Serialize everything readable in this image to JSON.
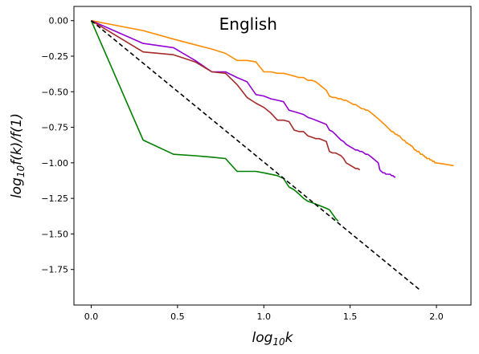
{
  "chart_data": {
    "type": "line",
    "title": "English",
    "xlabel": "log10k",
    "ylabel": "log10f(k)/f(1)",
    "xlim": [
      -0.1,
      2.2
    ],
    "ylim": [
      -2.0,
      0.1
    ],
    "grid": false,
    "x_ticks": [
      0.0,
      0.5,
      1.0,
      1.5,
      2.0
    ],
    "x_tick_labels": [
      "0.0",
      "0.5",
      "1.0",
      "1.5",
      "2.0"
    ],
    "y_ticks": [
      0.0,
      -0.25,
      -0.5,
      -0.75,
      -1.0,
      -1.25,
      -1.5,
      -1.75
    ],
    "y_tick_labels": [
      "0.00",
      "−0.25",
      "−0.50",
      "−0.75",
      "−1.00",
      "−1.25",
      "−1.50",
      "−1.75"
    ],
    "series": [
      {
        "color": "#ff8c00",
        "style": "solid",
        "points": [
          [
            0.0,
            0.0
          ],
          [
            0.301,
            -0.07
          ],
          [
            0.477,
            -0.13
          ],
          [
            0.602,
            -0.17
          ],
          [
            0.699,
            -0.2
          ],
          [
            0.778,
            -0.23
          ],
          [
            0.845,
            -0.28
          ],
          [
            0.903,
            -0.28
          ],
          [
            0.954,
            -0.29
          ],
          [
            1.0,
            -0.36
          ],
          [
            1.041,
            -0.36
          ],
          [
            1.079,
            -0.37
          ],
          [
            1.114,
            -0.37
          ],
          [
            1.146,
            -0.38
          ],
          [
            1.176,
            -0.39
          ],
          [
            1.204,
            -0.4
          ],
          [
            1.23,
            -0.4
          ],
          [
            1.255,
            -0.42
          ],
          [
            1.279,
            -0.42
          ],
          [
            1.301,
            -0.43
          ],
          [
            1.322,
            -0.45
          ],
          [
            1.342,
            -0.47
          ],
          [
            1.362,
            -0.49
          ],
          [
            1.38,
            -0.53
          ],
          [
            1.398,
            -0.54
          ],
          [
            1.415,
            -0.54
          ],
          [
            1.431,
            -0.55
          ],
          [
            1.447,
            -0.55
          ],
          [
            1.462,
            -0.56
          ],
          [
            1.477,
            -0.56
          ],
          [
            1.491,
            -0.57
          ],
          [
            1.505,
            -0.58
          ],
          [
            1.519,
            -0.59
          ],
          [
            1.531,
            -0.59
          ],
          [
            1.544,
            -0.6
          ],
          [
            1.556,
            -0.61
          ],
          [
            1.568,
            -0.62
          ],
          [
            1.58,
            -0.62
          ],
          [
            1.591,
            -0.63
          ],
          [
            1.602,
            -0.63
          ],
          [
            1.613,
            -0.64
          ],
          [
            1.623,
            -0.65
          ],
          [
            1.633,
            -0.66
          ],
          [
            1.643,
            -0.67
          ],
          [
            1.653,
            -0.68
          ],
          [
            1.663,
            -0.69
          ],
          [
            1.672,
            -0.7
          ],
          [
            1.681,
            -0.71
          ],
          [
            1.69,
            -0.72
          ],
          [
            1.699,
            -0.73
          ],
          [
            1.708,
            -0.74
          ],
          [
            1.716,
            -0.75
          ],
          [
            1.724,
            -0.76
          ],
          [
            1.732,
            -0.77
          ],
          [
            1.74,
            -0.78
          ],
          [
            1.748,
            -0.78
          ],
          [
            1.756,
            -0.79
          ],
          [
            1.763,
            -0.8
          ],
          [
            1.771,
            -0.8
          ],
          [
            1.778,
            -0.81
          ],
          [
            1.785,
            -0.81
          ],
          [
            1.792,
            -0.82
          ],
          [
            1.799,
            -0.83
          ],
          [
            1.806,
            -0.84
          ],
          [
            1.813,
            -0.84
          ],
          [
            1.82,
            -0.85
          ],
          [
            1.826,
            -0.86
          ],
          [
            1.833,
            -0.86
          ],
          [
            1.839,
            -0.87
          ],
          [
            1.845,
            -0.87
          ],
          [
            1.851,
            -0.88
          ],
          [
            1.857,
            -0.88
          ],
          [
            1.863,
            -0.89
          ],
          [
            1.869,
            -0.9
          ],
          [
            1.875,
            -0.91
          ],
          [
            1.881,
            -0.91
          ],
          [
            1.886,
            -0.92
          ],
          [
            1.892,
            -0.92
          ],
          [
            1.898,
            -0.92
          ],
          [
            1.903,
            -0.93
          ],
          [
            1.908,
            -0.94
          ],
          [
            1.914,
            -0.94
          ],
          [
            1.919,
            -0.94
          ],
          [
            1.924,
            -0.95
          ],
          [
            1.929,
            -0.95
          ],
          [
            1.934,
            -0.96
          ],
          [
            1.94,
            -0.96
          ],
          [
            1.944,
            -0.97
          ],
          [
            1.949,
            -0.97
          ],
          [
            1.954,
            -0.97
          ],
          [
            1.959,
            -0.97
          ],
          [
            1.964,
            -0.98
          ],
          [
            1.968,
            -0.98
          ],
          [
            1.973,
            -0.98
          ],
          [
            1.978,
            -0.99
          ],
          [
            1.982,
            -0.99
          ],
          [
            1.987,
            -0.99
          ],
          [
            1.991,
            -1.0
          ],
          [
            1.996,
            -1.0
          ],
          [
            2.0,
            -1.0
          ],
          [
            2.05,
            -1.01
          ],
          [
            2.1,
            -1.02
          ]
        ]
      },
      {
        "color": "#9400d3",
        "style": "solid",
        "points": [
          [
            0.0,
            0.0
          ],
          [
            0.301,
            -0.16
          ],
          [
            0.477,
            -0.19
          ],
          [
            0.602,
            -0.28
          ],
          [
            0.699,
            -0.36
          ],
          [
            0.778,
            -0.36
          ],
          [
            0.845,
            -0.4
          ],
          [
            0.903,
            -0.43
          ],
          [
            0.954,
            -0.52
          ],
          [
            1.0,
            -0.53
          ],
          [
            1.041,
            -0.55
          ],
          [
            1.079,
            -0.56
          ],
          [
            1.114,
            -0.57
          ],
          [
            1.146,
            -0.63
          ],
          [
            1.176,
            -0.64
          ],
          [
            1.204,
            -0.65
          ],
          [
            1.23,
            -0.66
          ],
          [
            1.255,
            -0.68
          ],
          [
            1.279,
            -0.69
          ],
          [
            1.301,
            -0.7
          ],
          [
            1.322,
            -0.71
          ],
          [
            1.342,
            -0.72
          ],
          [
            1.362,
            -0.73
          ],
          [
            1.38,
            -0.77
          ],
          [
            1.398,
            -0.78
          ],
          [
            1.415,
            -0.8
          ],
          [
            1.431,
            -0.82
          ],
          [
            1.447,
            -0.84
          ],
          [
            1.462,
            -0.85
          ],
          [
            1.477,
            -0.87
          ],
          [
            1.491,
            -0.88
          ],
          [
            1.505,
            -0.89
          ],
          [
            1.519,
            -0.9
          ],
          [
            1.531,
            -0.91
          ],
          [
            1.544,
            -0.91
          ],
          [
            1.556,
            -0.92
          ],
          [
            1.568,
            -0.92
          ],
          [
            1.58,
            -0.93
          ],
          [
            1.591,
            -0.94
          ],
          [
            1.602,
            -0.94
          ],
          [
            1.613,
            -0.95
          ],
          [
            1.623,
            -0.96
          ],
          [
            1.633,
            -0.97
          ],
          [
            1.643,
            -0.98
          ],
          [
            1.653,
            -0.99
          ],
          [
            1.663,
            -1.0
          ],
          [
            1.672,
            -1.05
          ],
          [
            1.681,
            -1.06
          ],
          [
            1.69,
            -1.07
          ],
          [
            1.699,
            -1.07
          ],
          [
            1.708,
            -1.08
          ],
          [
            1.716,
            -1.08
          ],
          [
            1.724,
            -1.08
          ],
          [
            1.732,
            -1.08
          ],
          [
            1.74,
            -1.09
          ],
          [
            1.748,
            -1.09
          ],
          [
            1.756,
            -1.1
          ],
          [
            1.763,
            -1.1
          ]
        ]
      },
      {
        "color": "#a52a2a",
        "style": "solid",
        "points": [
          [
            0.0,
            0.0
          ],
          [
            0.301,
            -0.22
          ],
          [
            0.477,
            -0.24
          ],
          [
            0.602,
            -0.29
          ],
          [
            0.699,
            -0.36
          ],
          [
            0.778,
            -0.37
          ],
          [
            0.845,
            -0.45
          ],
          [
            0.903,
            -0.54
          ],
          [
            0.954,
            -0.58
          ],
          [
            1.0,
            -0.61
          ],
          [
            1.041,
            -0.65
          ],
          [
            1.079,
            -0.7
          ],
          [
            1.114,
            -0.7
          ],
          [
            1.146,
            -0.71
          ],
          [
            1.176,
            -0.77
          ],
          [
            1.204,
            -0.78
          ],
          [
            1.23,
            -0.78
          ],
          [
            1.255,
            -0.81
          ],
          [
            1.279,
            -0.82
          ],
          [
            1.301,
            -0.83
          ],
          [
            1.322,
            -0.83
          ],
          [
            1.342,
            -0.84
          ],
          [
            1.362,
            -0.85
          ],
          [
            1.38,
            -0.92
          ],
          [
            1.398,
            -0.93
          ],
          [
            1.415,
            -0.93
          ],
          [
            1.431,
            -0.94
          ],
          [
            1.447,
            -0.95
          ],
          [
            1.462,
            -0.97
          ],
          [
            1.477,
            -1.0
          ],
          [
            1.491,
            -1.01
          ],
          [
            1.505,
            -1.02
          ],
          [
            1.519,
            -1.03
          ],
          [
            1.531,
            -1.04
          ],
          [
            1.544,
            -1.04
          ],
          [
            1.556,
            -1.05
          ]
        ]
      },
      {
        "color": "#008000",
        "style": "solid",
        "points": [
          [
            0.0,
            0.0
          ],
          [
            0.301,
            -0.84
          ],
          [
            0.477,
            -0.94
          ],
          [
            0.602,
            -0.95
          ],
          [
            0.699,
            -0.96
          ],
          [
            0.778,
            -0.97
          ],
          [
            0.845,
            -1.06
          ],
          [
            0.954,
            -1.06
          ],
          [
            1.0,
            -1.07
          ],
          [
            1.079,
            -1.09
          ],
          [
            1.114,
            -1.11
          ],
          [
            1.146,
            -1.17
          ],
          [
            1.176,
            -1.19
          ],
          [
            1.204,
            -1.22
          ],
          [
            1.23,
            -1.25
          ],
          [
            1.255,
            -1.27
          ],
          [
            1.279,
            -1.28
          ],
          [
            1.301,
            -1.29
          ],
          [
            1.322,
            -1.3
          ],
          [
            1.342,
            -1.31
          ],
          [
            1.362,
            -1.32
          ],
          [
            1.38,
            -1.33
          ],
          [
            1.398,
            -1.36
          ],
          [
            1.415,
            -1.39
          ],
          [
            1.431,
            -1.41
          ]
        ]
      },
      {
        "color": "#000000",
        "style": "dashed",
        "points": [
          [
            0.0,
            0.0
          ],
          [
            1.9,
            -1.89
          ]
        ]
      }
    ]
  }
}
